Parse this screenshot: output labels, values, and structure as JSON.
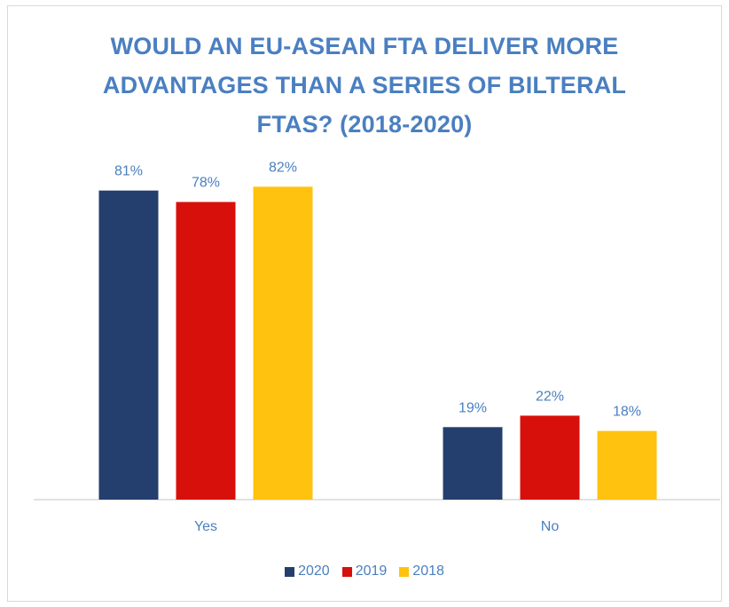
{
  "chart_data": {
    "type": "bar",
    "title_lines": [
      "WOULD AN EU-ASEAN FTA DELIVER MORE",
      "ADVANTAGES THAN A SERIES OF BILTERAL",
      "FTAS? (2018-2020)"
    ],
    "categories": [
      "Yes",
      "No"
    ],
    "series": [
      {
        "name": "2020",
        "color": "#243f6e",
        "values": [
          81,
          19
        ],
        "labels": [
          "81%",
          "19%"
        ]
      },
      {
        "name": "2019",
        "color": "#d7100c",
        "values": [
          78,
          22
        ],
        "labels": [
          "78%",
          "22%"
        ]
      },
      {
        "name": "2018",
        "color": "#ffc20e",
        "values": [
          82,
          18
        ],
        "labels": [
          "82%",
          "18%"
        ]
      }
    ],
    "ylim": [
      0,
      100
    ],
    "grid": false,
    "legend_position": "bottom",
    "unit": "%"
  }
}
